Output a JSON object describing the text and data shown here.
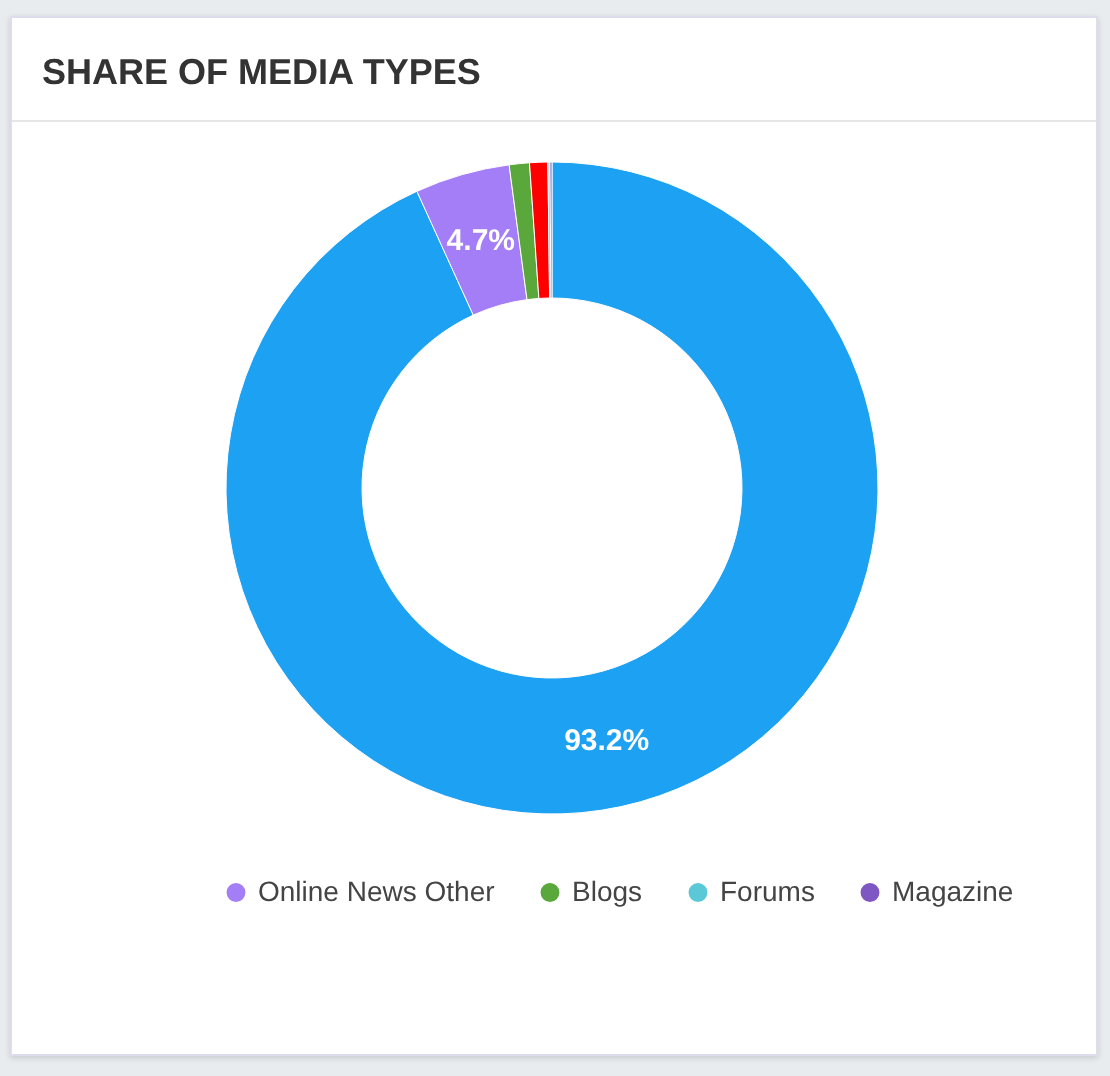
{
  "chart_data": {
    "type": "donut",
    "title": "SHARE OF MEDIA TYPES",
    "categories": [
      null,
      "Online News Other",
      "Blogs",
      null,
      "Forums",
      "Magazine"
    ],
    "values": [
      93.2,
      4.7,
      1.0,
      0.9,
      0.1,
      0.1
    ],
    "colors": [
      "#1da1f2",
      "#a47ef7",
      "#5aa73c",
      "#ff0000",
      "#5bc8d8",
      "#7e57c2"
    ],
    "value_labels": [
      "93.2%",
      "4.7%",
      null,
      null,
      null,
      null
    ],
    "legend": "bottom"
  }
}
